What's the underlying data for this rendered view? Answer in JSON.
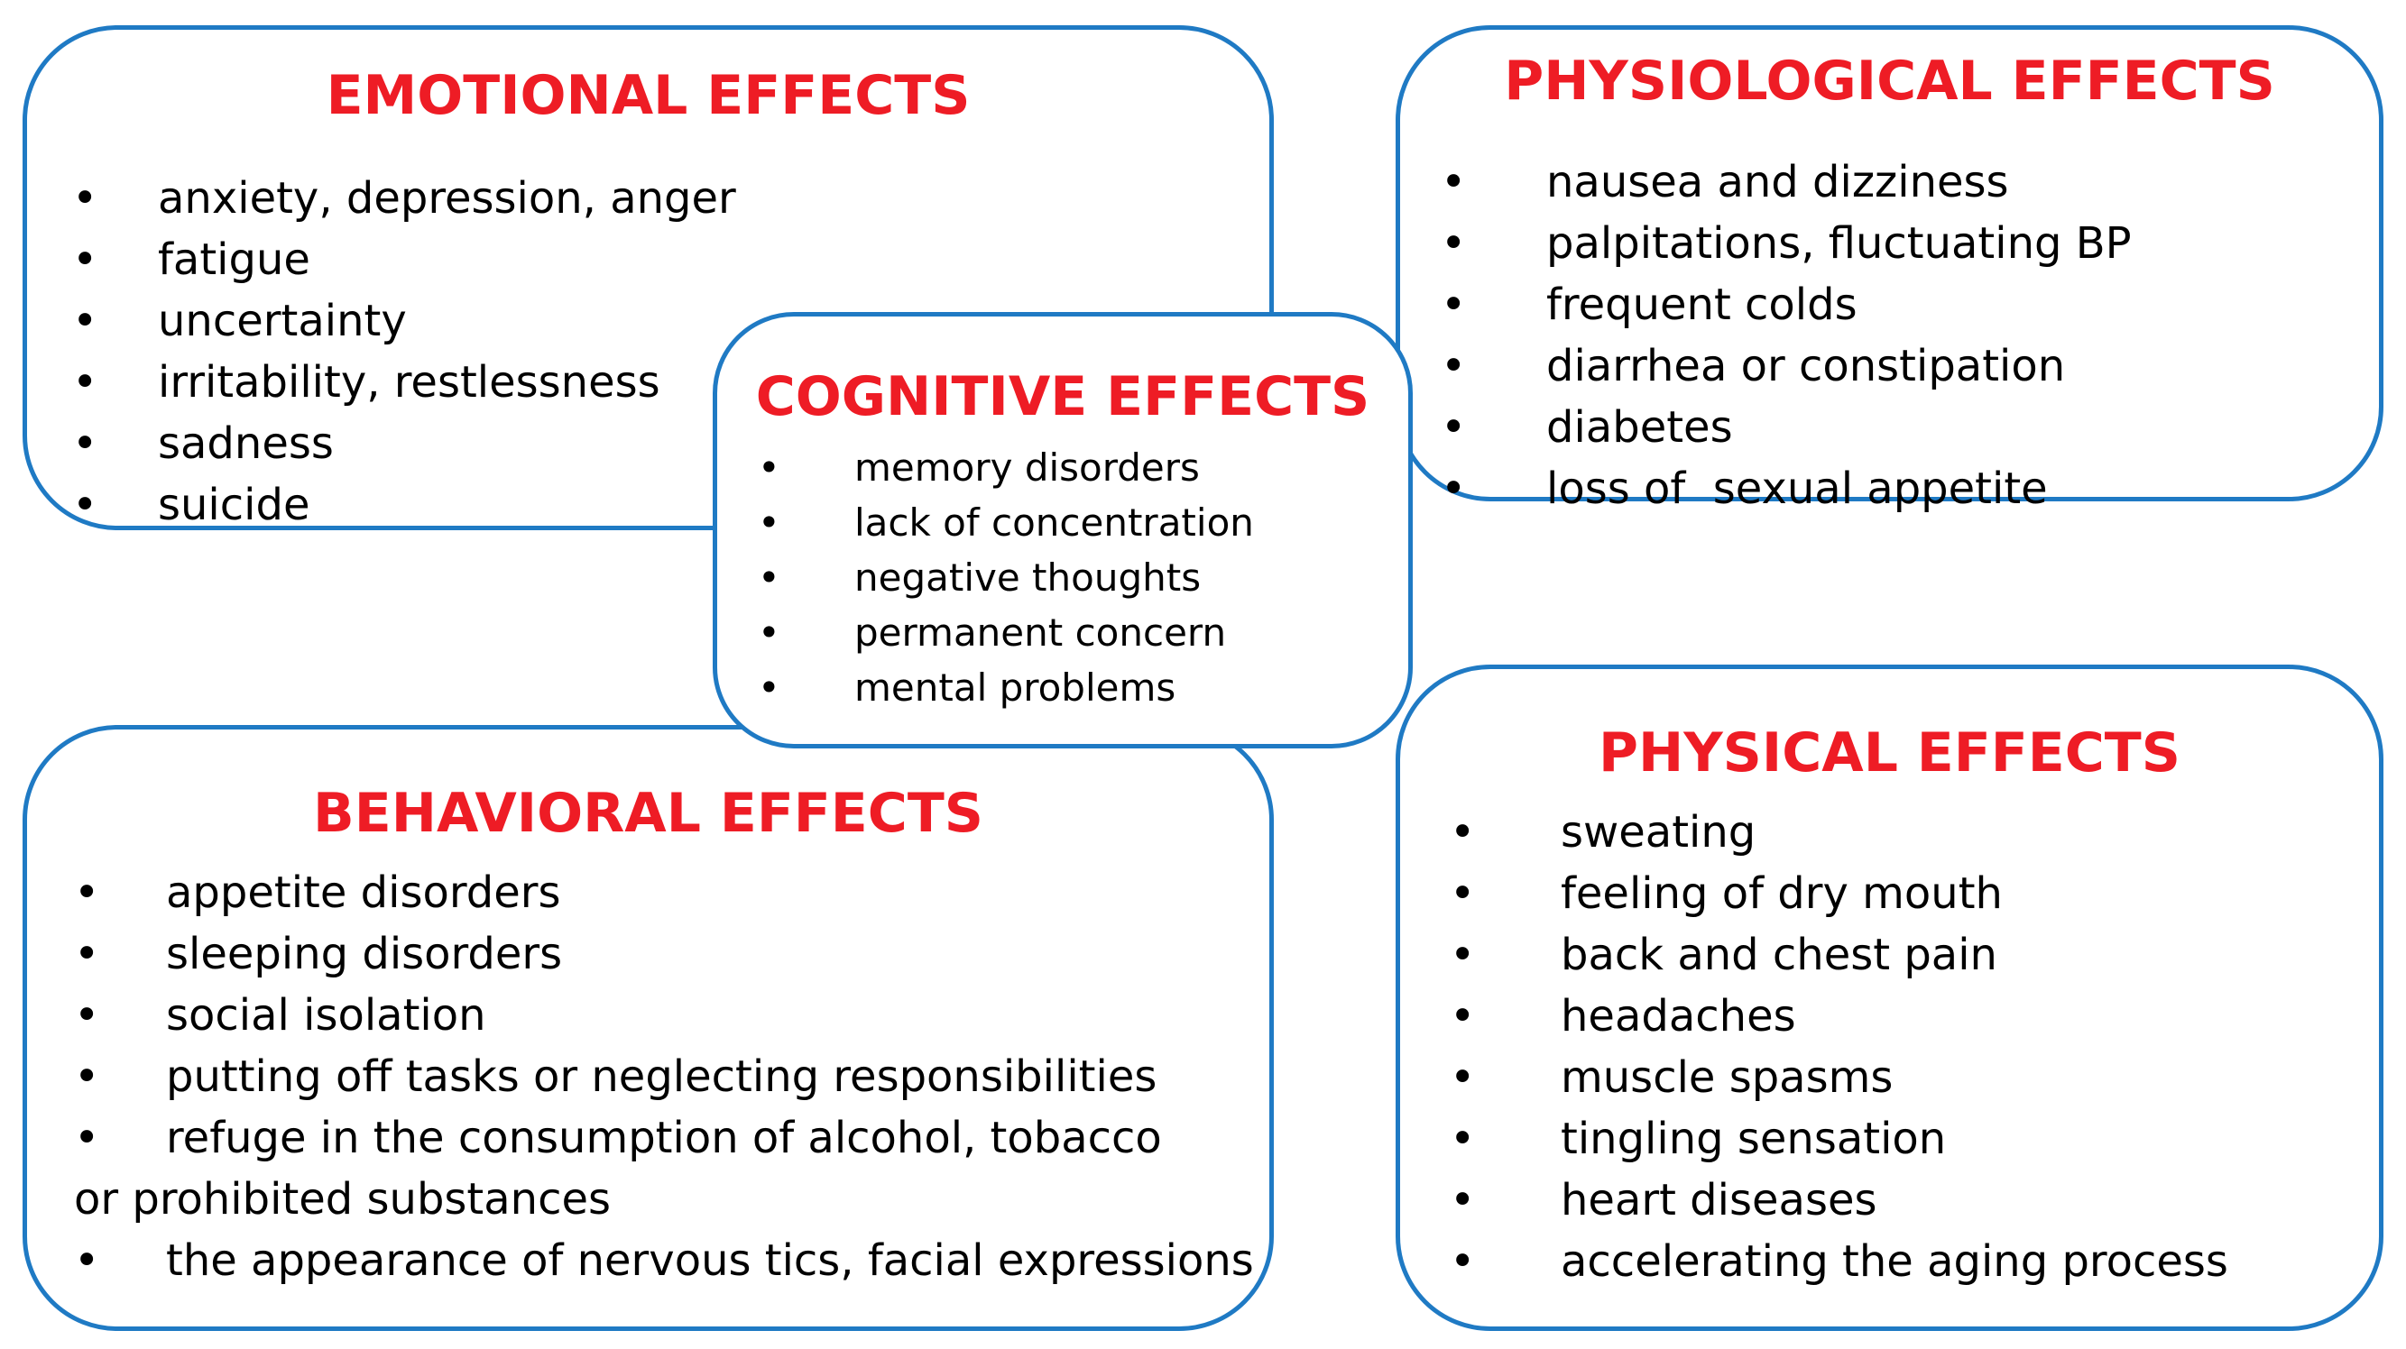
{
  "colors": {
    "title": "#ee1c25",
    "border": "#1f7ac4",
    "text": "#000000"
  },
  "bullet": "•",
  "emotional": {
    "title": "EMOTIONAL EFFECTS",
    "items": [
      "anxiety, depression, anger",
      "fatigue",
      "uncertainty",
      "irritability, restlessness",
      "sadness",
      "suicide"
    ]
  },
  "physiological": {
    "title": "PHYSIOLOGICAL EFFECTS",
    "items": [
      "nausea and dizziness",
      "palpitations, fluctuating BP",
      "frequent colds",
      "diarrhea or constipation",
      "diabetes",
      "loss of  sexual appetite"
    ]
  },
  "cognitive": {
    "title": "COGNITIVE EFFECTS",
    "items": [
      "memory disorders",
      "lack of concentration",
      "negative thoughts",
      "permanent concern",
      "mental problems"
    ]
  },
  "behavioral": {
    "title": "BEHAVIORAL EFFECTS",
    "items": [
      "appetite disorders",
      "sleeping disorders",
      "social isolation",
      "putting off tasks or neglecting responsibilities",
      "refuge in the consumption of alcohol, tobacco or prohibited substances",
      "the appearance of nervous tics, facial expressions"
    ]
  },
  "physical": {
    "title": "PHYSICAL EFFECTS",
    "items": [
      "sweating",
      "feeling of dry mouth",
      "back and chest pain",
      "headaches",
      "muscle spasms",
      "tingling sensation",
      "heart diseases",
      "accelerating the aging process"
    ]
  }
}
